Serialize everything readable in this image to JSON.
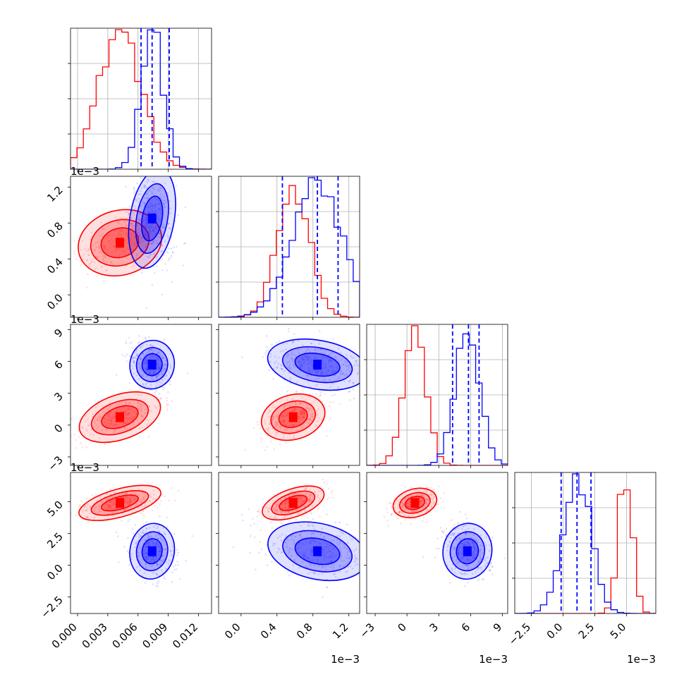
{
  "chart_data": {
    "type": "corner",
    "title": "",
    "grid": true,
    "colors": {
      "series_a": "#ff0000",
      "series_b": "#0000ff",
      "grid": "#b0b0b0"
    },
    "series": [
      {
        "color": "#ff0000",
        "means": [
          0.0042,
          0.00058,
          0.00075,
          0.0049
        ],
        "sigmas": [
          0.0021,
          0.00018,
          0.00105,
          0.00055
        ]
      },
      {
        "color": "#0000ff",
        "means": [
          0.0074,
          0.00085,
          0.0057,
          0.0011
        ],
        "sigmas": [
          0.0011,
          0.00028,
          0.00115,
          0.0011
        ]
      }
    ],
    "quantile_lines": {
      "color": "#0000ff",
      "values": [
        [
          0.0063,
          0.0074,
          0.0091
        ],
        [
          0.00046,
          0.00085,
          0.00108
        ],
        [
          0.0043,
          0.0058,
          0.0068
        ],
        [
          -0.00015,
          0.0011,
          0.0022
        ]
      ]
    },
    "axes": [
      {
        "range": [
          -0.0007,
          0.0133
        ],
        "ticks": [
          0.0,
          0.003,
          0.006,
          0.009,
          0.012
        ],
        "tick_labels": [
          "0.000",
          "0.003",
          "0.006",
          "0.009",
          "0.012"
        ]
      },
      {
        "range": [
          -0.00025,
          0.00132
        ],
        "ticks": [
          0.0,
          0.0004,
          0.0008,
          0.0012
        ],
        "tick_labels": [
          "0.0",
          "0.4",
          "0.8",
          "1.2"
        ],
        "offset_text": "1e−3"
      },
      {
        "range": [
          -0.0038,
          0.0095
        ],
        "ticks": [
          -0.003,
          0.0,
          0.003,
          0.006,
          0.009
        ],
        "tick_labels": [
          "−3",
          "0",
          "3",
          "6",
          "9"
        ],
        "offset_text": "1e−3"
      },
      {
        "range": [
          -0.0038,
          0.0073
        ],
        "ticks": [
          -0.0025,
          0.0,
          0.0025,
          0.005
        ],
        "tick_labels": [
          "−2.5",
          "0.0",
          "2.5",
          "5.0"
        ],
        "offset_text": "1e−3"
      }
    ]
  }
}
